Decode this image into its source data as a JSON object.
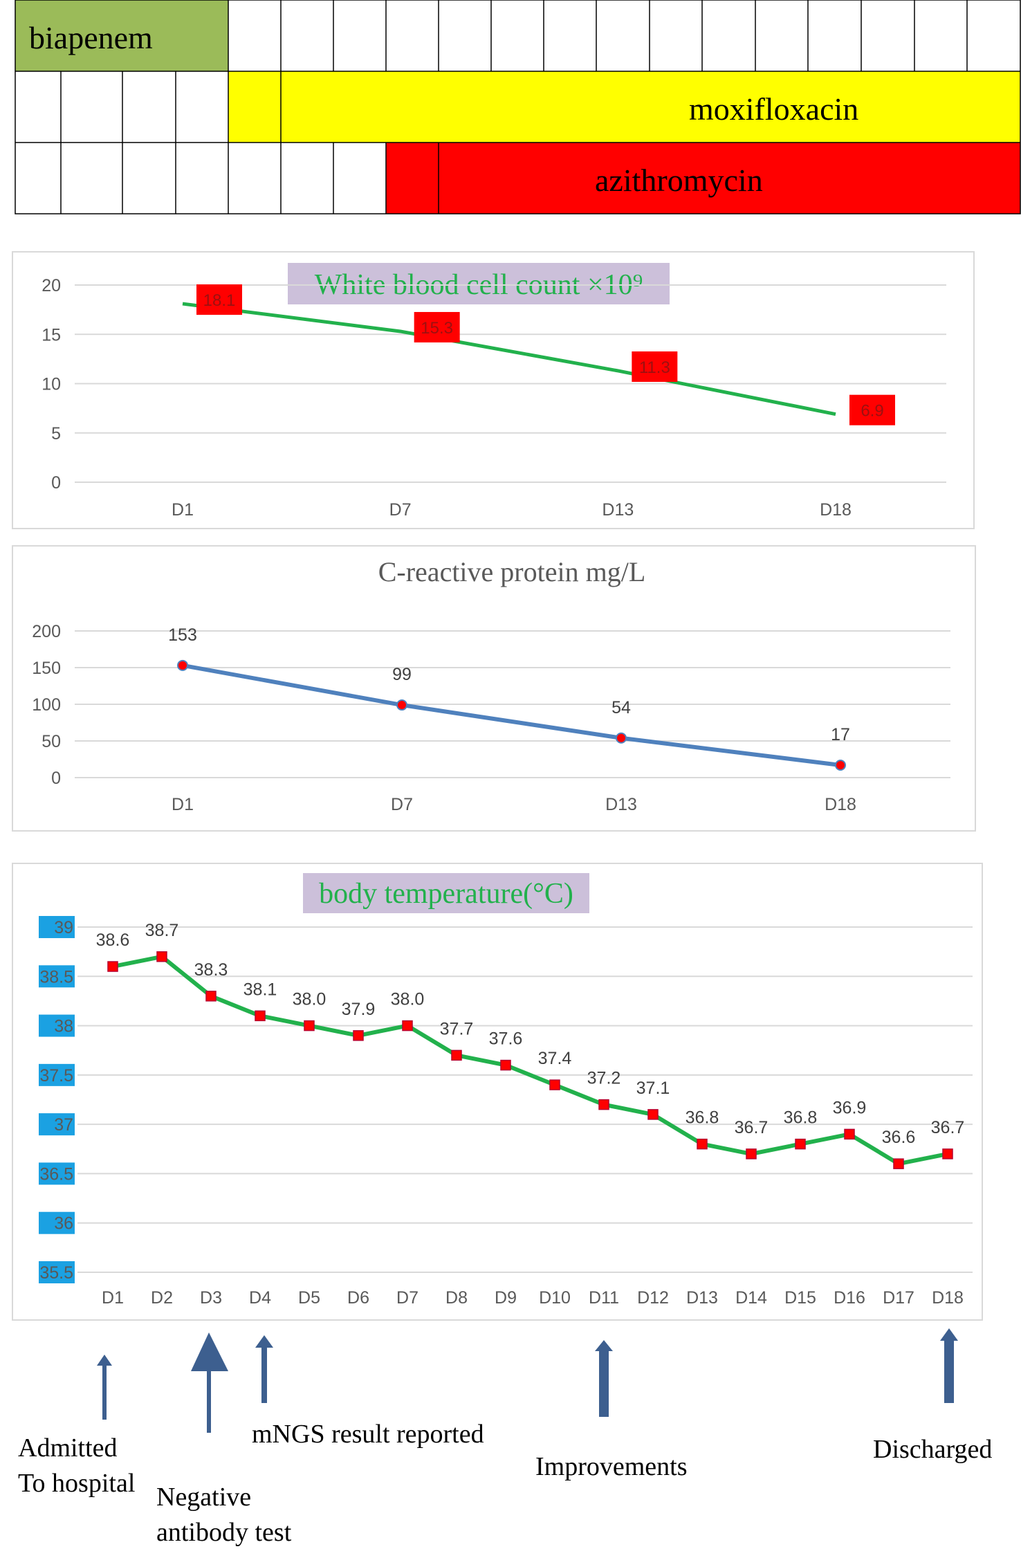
{
  "colors": {
    "biapenem": "#9bbb59",
    "moxifloxacin": "#ffff00",
    "azithromycin": "#ff0000",
    "wbc_line": "#22b14c",
    "crp_line": "#4f81bd",
    "temp_line": "#22b14c",
    "title_bg": "#ccc0da",
    "axis_label_bg": "#1ba1e2",
    "arrow": "#3d5f8f"
  },
  "drug_timeline": {
    "biapenem": "biapenem",
    "moxifloxacin": "moxifloxacin",
    "azithromycin": "azithromycin"
  },
  "chart_data": [
    {
      "type": "line",
      "title": "White blood cell count ×10⁹",
      "categories": [
        "D1",
        "D7",
        "D13",
        "D18"
      ],
      "values": [
        18.1,
        15.3,
        11.3,
        6.9
      ],
      "ylim": [
        0,
        20
      ],
      "yticks": [
        "0",
        "5",
        "10",
        "15",
        "20"
      ],
      "data_labels": [
        "18.1",
        "15.3",
        "11.3",
        "6.9"
      ],
      "grid": true
    },
    {
      "type": "line",
      "title": "C-reactive protein  mg/L",
      "categories": [
        "D1",
        "D7",
        "D13",
        "D18"
      ],
      "values": [
        153,
        99,
        54,
        17
      ],
      "ylim": [
        0,
        200
      ],
      "yticks": [
        "0",
        "50",
        "100",
        "150",
        "200"
      ],
      "data_labels": [
        "153",
        "99",
        "54",
        "17"
      ],
      "grid": true
    },
    {
      "type": "line",
      "title": "body temperature(°C)",
      "categories": [
        "D1",
        "D2",
        "D3",
        "D4",
        "D5",
        "D6",
        "D7",
        "D8",
        "D9",
        "D10",
        "D11",
        "D12",
        "D13",
        "D14",
        "D15",
        "D16",
        "D17",
        "D18"
      ],
      "values": [
        38.6,
        38.7,
        38.3,
        38.1,
        38.0,
        37.9,
        38.0,
        37.7,
        37.6,
        37.4,
        37.2,
        37.1,
        36.8,
        36.7,
        36.8,
        36.9,
        36.6,
        36.7
      ],
      "data_labels": [
        "38.6",
        "38.7",
        "38.3",
        "38.1",
        "38.0",
        "37.9",
        "38.0",
        "37.7",
        "37.6",
        "37.4",
        "37.2",
        "37.1",
        "36.8",
        "36.7",
        "36.8",
        "36.9",
        "36.6",
        "36.7"
      ],
      "ylim": [
        35.5,
        39
      ],
      "yticks": [
        "35.5",
        "36",
        "36.5",
        "37",
        "37.5",
        "38",
        "38.5",
        "39"
      ],
      "grid": true
    }
  ],
  "events": {
    "admitted_line1": "Admitted",
    "admitted_line2": "To hospital",
    "negative_line1": "Negative",
    "negative_line2": "antibody test",
    "mngs": "mNGS result reported",
    "improvements": "Improvements",
    "discharged": "Discharged"
  }
}
